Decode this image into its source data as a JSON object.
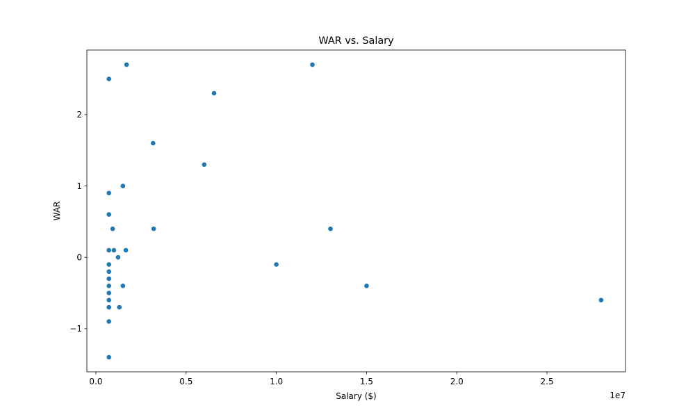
{
  "chart_data": {
    "type": "scatter",
    "title": "WAR vs. Salary",
    "xlabel": "Salary ($)",
    "ylabel": "WAR",
    "x_offset_label": "1e7",
    "xlim": [
      -500000.0,
      29350000.0
    ],
    "ylim": [
      -1.605,
      2.905
    ],
    "x_ticks": [
      {
        "value": 0,
        "label": "0.0"
      },
      {
        "value": 5000000,
        "label": "0.5"
      },
      {
        "value": 10000000,
        "label": "1.0"
      },
      {
        "value": 15000000,
        "label": "1.5"
      },
      {
        "value": 20000000,
        "label": "2.0"
      },
      {
        "value": 25000000,
        "label": "2.5"
      }
    ],
    "y_ticks": [
      {
        "value": -1,
        "label": "−1"
      },
      {
        "value": 0,
        "label": "0"
      },
      {
        "value": 1,
        "label": "1"
      },
      {
        "value": 2,
        "label": "2"
      }
    ],
    "grid": false,
    "legend": "none",
    "marker_color": "#1f77b4",
    "points": [
      {
        "x": 720000,
        "y": 2.5
      },
      {
        "x": 1700000,
        "y": 2.7
      },
      {
        "x": 12000000,
        "y": 2.7
      },
      {
        "x": 6550000,
        "y": 2.3
      },
      {
        "x": 3170000,
        "y": 1.6
      },
      {
        "x": 6000000,
        "y": 1.3
      },
      {
        "x": 1500000,
        "y": 1.0
      },
      {
        "x": 720000,
        "y": 0.9
      },
      {
        "x": 720000,
        "y": 0.6
      },
      {
        "x": 930000,
        "y": 0.4
      },
      {
        "x": 3200000,
        "y": 0.4
      },
      {
        "x": 13000000,
        "y": 0.4
      },
      {
        "x": 720000,
        "y": 0.1
      },
      {
        "x": 1000000,
        "y": 0.1
      },
      {
        "x": 1660000,
        "y": 0.1
      },
      {
        "x": 1230000,
        "y": 0.0
      },
      {
        "x": 720000,
        "y": -0.1
      },
      {
        "x": 10000000,
        "y": -0.1
      },
      {
        "x": 720000,
        "y": -0.2
      },
      {
        "x": 720000,
        "y": -0.3
      },
      {
        "x": 720000,
        "y": -0.4
      },
      {
        "x": 1500000,
        "y": -0.4
      },
      {
        "x": 15000000,
        "y": -0.4
      },
      {
        "x": 720000,
        "y": -0.5
      },
      {
        "x": 720000,
        "y": -0.6
      },
      {
        "x": 28000000,
        "y": -0.6
      },
      {
        "x": 720000,
        "y": -0.7
      },
      {
        "x": 1300000,
        "y": -0.7
      },
      {
        "x": 720000,
        "y": -0.9
      },
      {
        "x": 720000,
        "y": -1.4
      }
    ]
  }
}
